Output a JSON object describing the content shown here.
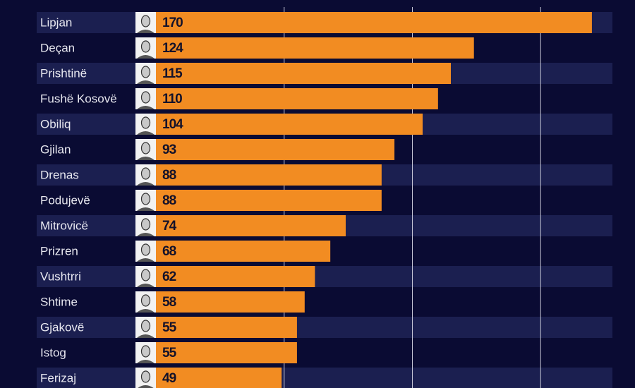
{
  "chart_data": {
    "type": "bar",
    "orientation": "horizontal",
    "categories": [
      "Lipjan",
      "Deçan",
      "Prishtinë",
      "Fushë Kosovë",
      "Obiliq",
      "Gjilan",
      "Drenas",
      "Podujevë",
      "Mitrovicë",
      "Prizren",
      "Vushtrri",
      "Shtime",
      "Gjakovë",
      "Istog",
      "Ferizaj"
    ],
    "values": [
      170,
      124,
      115,
      110,
      104,
      93,
      88,
      88,
      74,
      68,
      62,
      58,
      55,
      55,
      49
    ],
    "color": "#f28c22",
    "xlim": [
      0,
      178
    ],
    "xticks": [
      50,
      100,
      150
    ],
    "grid": true
  }
}
